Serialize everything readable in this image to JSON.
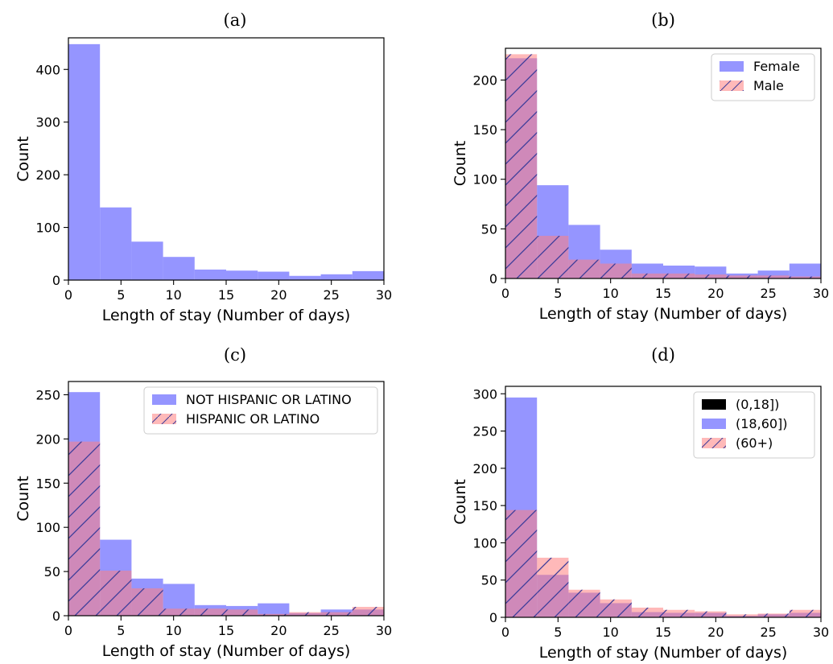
{
  "figure": {
    "panels": [
      "(a)",
      "(b)",
      "(c)",
      "(d)"
    ]
  },
  "colors": {
    "blue": "#7b7bff",
    "red": "#ff7f7f",
    "overlap": "#9b3f7f",
    "black": "#000000",
    "hatch": "#3b3b9a"
  },
  "chart_data": [
    {
      "type": "bar",
      "panel": "(a)",
      "xlabel": "Length of stay (Number of days)",
      "ylabel": "Count",
      "xlim": [
        0,
        30
      ],
      "ylim": [
        0,
        460
      ],
      "xticks": [
        0,
        5,
        10,
        15,
        20,
        25,
        30
      ],
      "yticks": [
        0,
        100,
        200,
        300,
        400
      ],
      "bin_edges": [
        0,
        3,
        6,
        9,
        12,
        15,
        18,
        21,
        24,
        27,
        30
      ],
      "series": [
        {
          "color": "blue",
          "values": [
            448,
            138,
            73,
            44,
            20,
            18,
            16,
            8,
            11,
            17
          ]
        }
      ],
      "legend": null
    },
    {
      "type": "bar",
      "panel": "(b)",
      "xlabel": "Length of stay (Number of days)",
      "ylabel": "Count",
      "xlim": [
        0,
        30
      ],
      "ylim": [
        0,
        232
      ],
      "xticks": [
        0,
        5,
        10,
        15,
        20,
        25,
        30
      ],
      "yticks": [
        0,
        50,
        100,
        150,
        200
      ],
      "bin_edges": [
        0,
        3,
        6,
        9,
        12,
        15,
        18,
        21,
        24,
        27,
        30
      ],
      "series": [
        {
          "name": "Female",
          "color": "blue",
          "values": [
            222,
            94,
            54,
            29,
            15,
            13,
            12,
            5,
            8,
            15
          ]
        },
        {
          "name": "Male",
          "color": "red",
          "hatch": true,
          "values": [
            226,
            43,
            19,
            15,
            5,
            5,
            4,
            3,
            3,
            2
          ]
        }
      ],
      "legend": "top-right"
    },
    {
      "type": "bar",
      "panel": "(c)",
      "xlabel": "Length of stay (Number of days)",
      "ylabel": "Count",
      "xlim": [
        0,
        30
      ],
      "ylim": [
        0,
        265
      ],
      "xticks": [
        0,
        5,
        10,
        15,
        20,
        25,
        30
      ],
      "yticks": [
        0,
        50,
        100,
        150,
        200,
        250
      ],
      "bin_edges": [
        0,
        3,
        6,
        9,
        12,
        15,
        18,
        21,
        24,
        27,
        30
      ],
      "series": [
        {
          "name": "NOT HISPANIC OR LATINO",
          "color": "blue",
          "values": [
            253,
            86,
            42,
            36,
            12,
            11,
            14,
            3,
            7,
            7
          ]
        },
        {
          "name": "HISPANIC OR LATINO",
          "color": "red",
          "hatch": true,
          "values": [
            197,
            51,
            31,
            8,
            8,
            7,
            2,
            4,
            4,
            10
          ]
        }
      ],
      "legend": "top-right"
    },
    {
      "type": "bar",
      "panel": "(d)",
      "xlabel": "Length of stay (Number of days)",
      "ylabel": "Count",
      "xlim": [
        0,
        30
      ],
      "ylim": [
        0,
        310
      ],
      "xticks": [
        0,
        5,
        10,
        15,
        20,
        25,
        30
      ],
      "yticks": [
        0,
        50,
        100,
        150,
        200,
        250,
        300
      ],
      "bin_edges": [
        0,
        3,
        6,
        9,
        12,
        15,
        18,
        21,
        24,
        27,
        30
      ],
      "series": [
        {
          "name": "(0,18])",
          "color": "black",
          "values": [
            0,
            0,
            0,
            0,
            0,
            0,
            0,
            0,
            0,
            0
          ]
        },
        {
          "name": "(18,60])",
          "color": "blue",
          "values": [
            295,
            57,
            33,
            19,
            7,
            6,
            6,
            2,
            4,
            6
          ]
        },
        {
          "name": "(60+)",
          "color": "red",
          "hatch": true,
          "values": [
            144,
            80,
            37,
            24,
            13,
            10,
            8,
            4,
            5,
            10
          ]
        }
      ],
      "legend": "top-right"
    }
  ]
}
